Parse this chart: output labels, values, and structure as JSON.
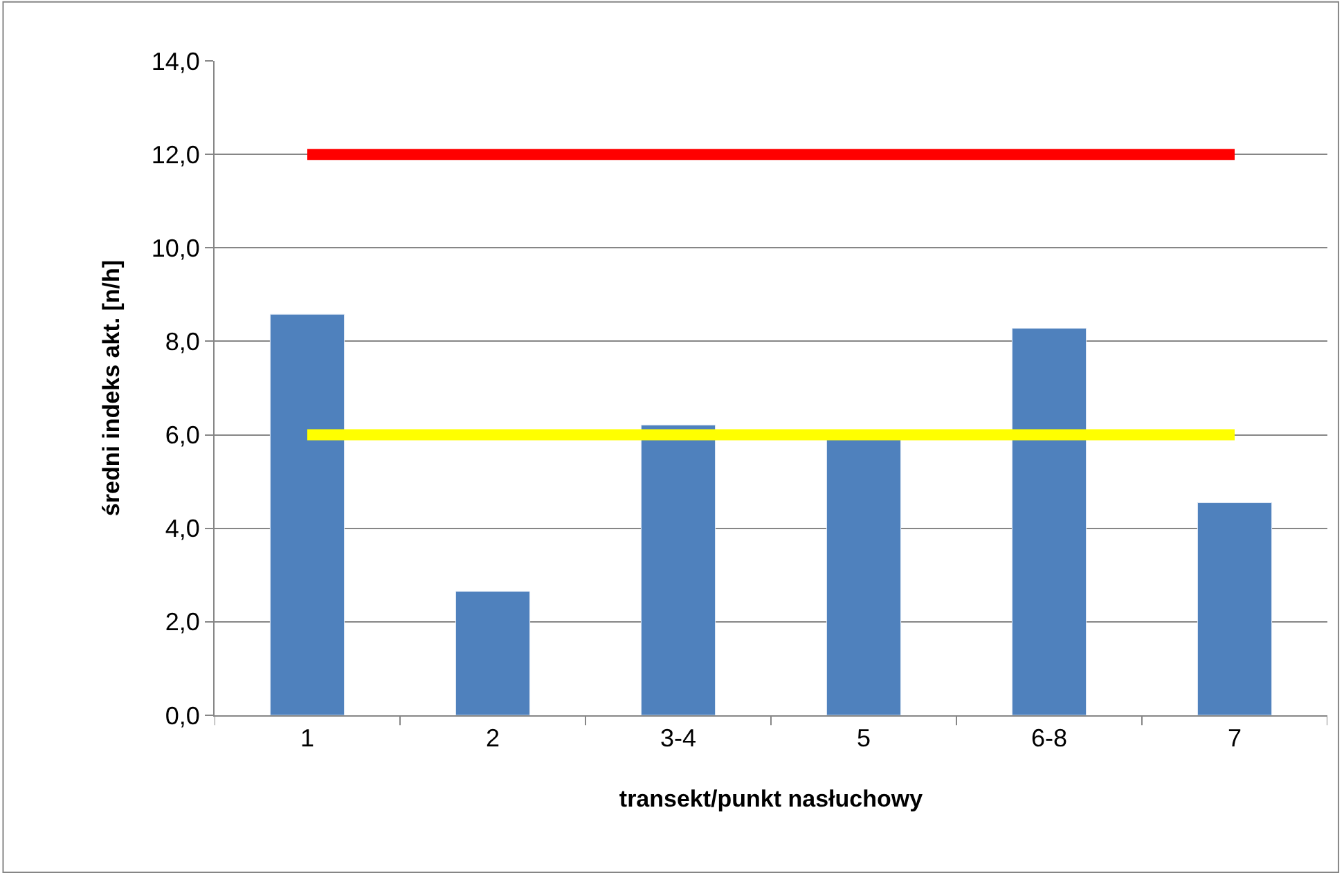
{
  "chart_data": {
    "type": "bar",
    "xlabel": "transekt/punkt nasłuchowy",
    "ylabel": "średni indeks akt. [n/h]",
    "categories": [
      "1",
      "2",
      "3-4",
      "5",
      "6-8",
      "7"
    ],
    "series": [
      {
        "color": "#4f81bd",
        "values": [
          8.58,
          2.65,
          6.21,
          5.9,
          8.28,
          4.55
        ]
      },
      {
        "type": "line",
        "color": "#ff0000",
        "values": [
          12,
          12,
          12,
          12,
          12,
          12
        ]
      },
      {
        "type": "line",
        "color": "#ffff00",
        "values": [
          6,
          6,
          6,
          6,
          6,
          6
        ]
      }
    ],
    "ylim": [
      0,
      14
    ],
    "yticks": [
      {
        "value": 0,
        "label": "0,0"
      },
      {
        "value": 2,
        "label": "2,0"
      },
      {
        "value": 4,
        "label": "4,0"
      },
      {
        "value": 6,
        "label": "6,0"
      },
      {
        "value": 8,
        "label": "8,0"
      },
      {
        "value": 10,
        "label": "10,0"
      },
      {
        "value": 12,
        "label": "12,0"
      },
      {
        "value": 14,
        "label": "14,0"
      }
    ],
    "grid": "y",
    "marker": "none",
    "line_style": "solid"
  }
}
